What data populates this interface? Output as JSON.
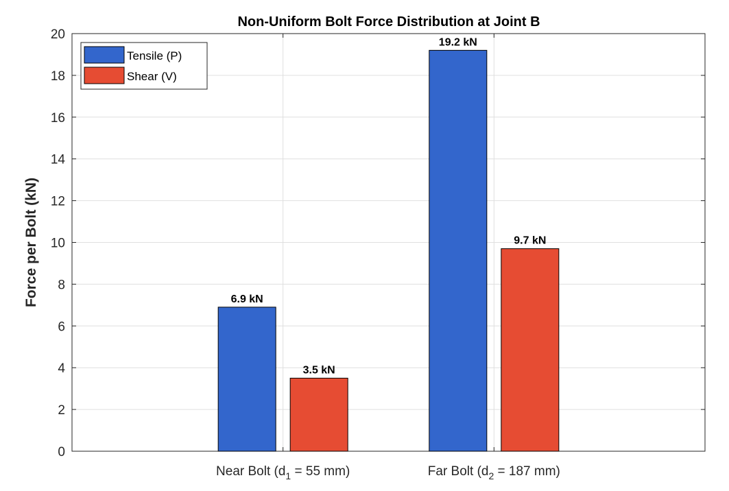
{
  "chart_data": {
    "type": "bar",
    "title": "Non-Uniform Bolt Force Distribution at Joint B",
    "ylabel": "Force per Bolt (kN)",
    "xlabel": "",
    "ylim": [
      0,
      20
    ],
    "yticks": [
      0,
      2,
      4,
      6,
      8,
      10,
      12,
      14,
      16,
      18,
      20
    ],
    "grid": true,
    "legend_position": "top-left",
    "categories": [
      {
        "main": "Near Bolt (d",
        "sub": "1",
        "rest": " = 55 mm)"
      },
      {
        "main": "Far Bolt (d",
        "sub": "2",
        "rest": " = 187 mm)"
      }
    ],
    "series": [
      {
        "name": "Tensile (P)",
        "color": "#3366cc",
        "values": [
          6.9,
          19.2
        ],
        "labels": [
          "6.9 kN",
          "19.2 kN"
        ]
      },
      {
        "name": "Shear (V)",
        "color": "#e64c33",
        "values": [
          3.5,
          9.7
        ],
        "labels": [
          "3.5 kN",
          "9.7 kN"
        ]
      }
    ]
  }
}
